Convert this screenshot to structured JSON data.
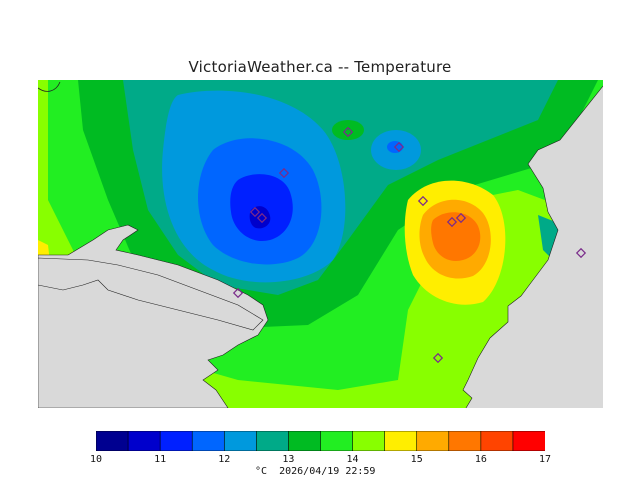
{
  "header": {
    "title": "VictoriaWeather.ca -- Temperature"
  },
  "colors": {
    "land_outside": "#d9d9d9",
    "water_border": "#222222",
    "station_marker": "#7a2b8a"
  },
  "legend": {
    "ticks": [
      "10",
      "11",
      "12",
      "13",
      "14",
      "15",
      "16",
      "17"
    ],
    "bins": [
      {
        "range": [
          10.0,
          10.5
        ],
        "color": "#000090"
      },
      {
        "range": [
          10.5,
          11.0
        ],
        "color": "#0000cc"
      },
      {
        "range": [
          11.0,
          11.5
        ],
        "color": "#0020ff"
      },
      {
        "range": [
          11.5,
          12.0
        ],
        "color": "#0066ff"
      },
      {
        "range": [
          12.0,
          12.5
        ],
        "color": "#0099dd"
      },
      {
        "range": [
          12.5,
          13.0
        ],
        "color": "#00aa88"
      },
      {
        "range": [
          13.0,
          13.5
        ],
        "color": "#00bb22"
      },
      {
        "range": [
          13.5,
          14.0
        ],
        "color": "#22ee22"
      },
      {
        "range": [
          14.0,
          14.5
        ],
        "color": "#88ff00"
      },
      {
        "range": [
          14.5,
          15.0
        ],
        "color": "#ffee00"
      },
      {
        "range": [
          15.0,
          15.5
        ],
        "color": "#ffaa00"
      },
      {
        "range": [
          15.5,
          16.0
        ],
        "color": "#ff7700"
      },
      {
        "range": [
          16.0,
          16.5
        ],
        "color": "#ff4400"
      },
      {
        "range": [
          16.5,
          17.0
        ],
        "color": "#ff0000"
      }
    ],
    "unit": "°C",
    "timestamp": "2026/04/19 22:59"
  }
}
